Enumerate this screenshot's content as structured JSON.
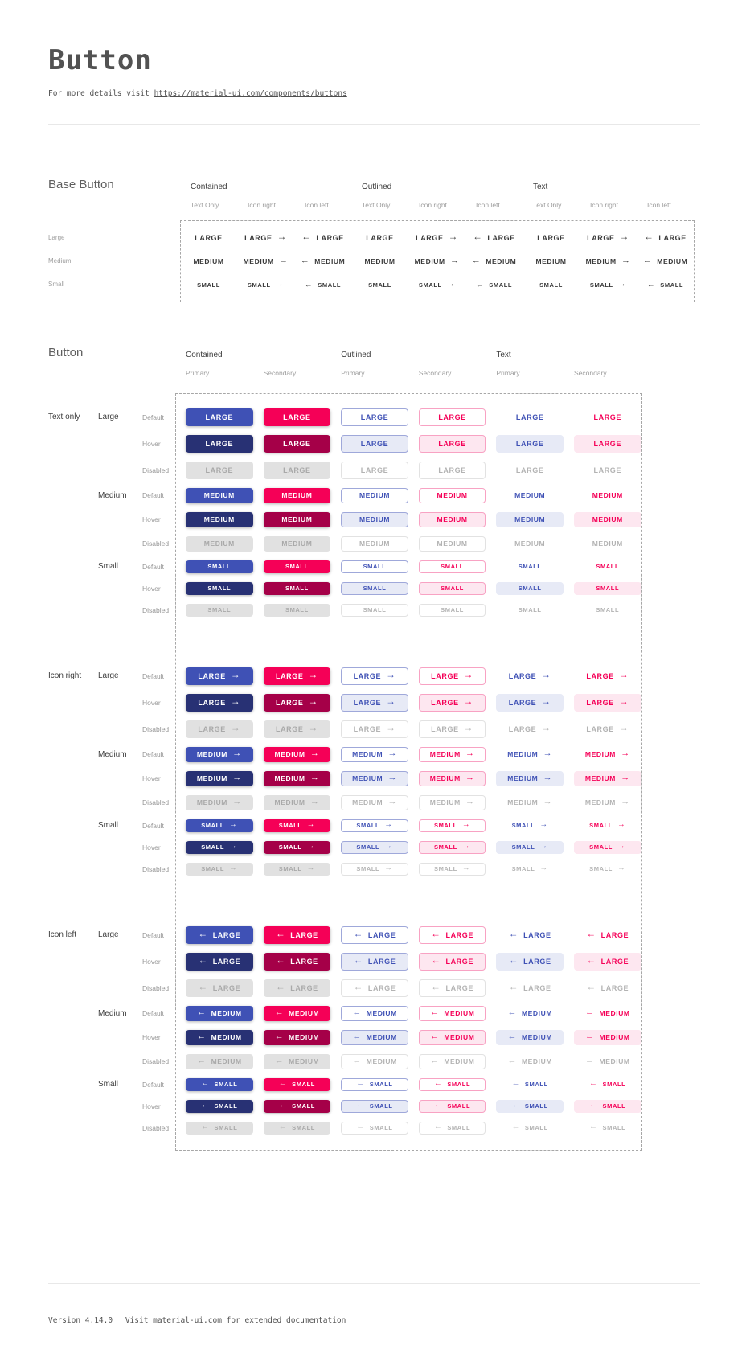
{
  "header": {
    "title": "Button",
    "subtitle_prefix": "For more details visit ",
    "subtitle_link": "https://material-ui.com/components/buttons"
  },
  "footer": {
    "version": "Version 4.14.0",
    "note": "Visit material-ui.com for extended documentation"
  },
  "colors": {
    "primary": "#3f51b5",
    "primary_hover": "#283174",
    "primary_tint": "#e7eaf6",
    "secondary": "#f50057",
    "secondary_hover": "#a50048",
    "secondary_tint": "#fde7f0",
    "disabled_bg": "#e1e1e1",
    "disabled_text": "#a9a9a9"
  },
  "icons": {
    "arrow_right": "→",
    "arrow_left": "←"
  },
  "base_section": {
    "title": "Base Button",
    "groups": [
      {
        "label": "Contained"
      },
      {
        "label": "Outlined"
      },
      {
        "label": "Text"
      }
    ],
    "variants": [
      {
        "label": "Text Only",
        "icon": "none"
      },
      {
        "label": "Icon right",
        "icon": "right"
      },
      {
        "label": "Icon left",
        "icon": "left"
      }
    ],
    "rows": [
      {
        "label": "Large",
        "text": "LARGE",
        "size": "lg"
      },
      {
        "label": "Medium",
        "text": "MEDIUM",
        "size": "md"
      },
      {
        "label": "Small",
        "text": "SMALL",
        "size": "sm"
      }
    ]
  },
  "button_section": {
    "title": "Button",
    "groups": [
      {
        "label": "Contained",
        "variant": "contained"
      },
      {
        "label": "Outlined",
        "variant": "outlined"
      },
      {
        "label": "Text",
        "variant": "text"
      }
    ],
    "palettes": [
      {
        "label": "Primary",
        "key": "primary"
      },
      {
        "label": "Secondary",
        "key": "secondary"
      }
    ],
    "icon_groups": [
      {
        "label": "Text only",
        "icon": "none"
      },
      {
        "label": "Icon right",
        "icon": "right"
      },
      {
        "label": "Icon left",
        "icon": "left"
      }
    ],
    "sizes": [
      {
        "label": "Large",
        "text": "LARGE",
        "size": "lg"
      },
      {
        "label": "Medium",
        "text": "MEDIUM",
        "size": "md"
      },
      {
        "label": "Small",
        "text": "SMALL",
        "size": "sm"
      }
    ],
    "states": [
      {
        "label": "Default",
        "key": "default"
      },
      {
        "label": "Hover",
        "key": "hover"
      },
      {
        "label": "Disabled",
        "key": "disabled"
      }
    ]
  }
}
